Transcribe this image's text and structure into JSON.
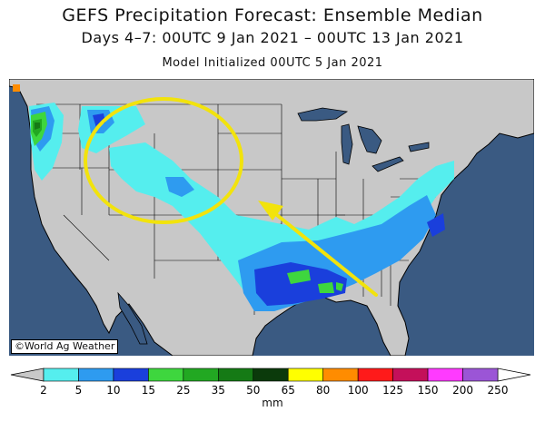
{
  "header": {
    "title": "GEFS Precipitation Forecast: Ensemble Median",
    "subtitle": "Days 4–7: 00UTC 9 Jan 2021 – 00UTC 13 Jan 2021",
    "init": "Model Initialized 00UTC 5 Jan 2021"
  },
  "credit": "©World Ag Weather",
  "colors": {
    "ocean": "#3a5a82",
    "land": "#c8c8c8",
    "highlight": "#f2e30c"
  },
  "colorbar": {
    "units": "mm",
    "ticks": [
      "2",
      "5",
      "10",
      "15",
      "25",
      "35",
      "50",
      "65",
      "80",
      "100",
      "125",
      "150",
      "200",
      "250"
    ],
    "colors": [
      "#55eeee",
      "#2e9bf0",
      "#1a3fdc",
      "#3ed63e",
      "#22a822",
      "#157a15",
      "#0b3a0b",
      "#ffff00",
      "#ff8c00",
      "#ff1a1a",
      "#c4105a",
      "#ff3aff",
      "#9b55d6"
    ],
    "below_color": "#c8c8c8",
    "above_color": "#ffffff"
  },
  "annotations": {
    "circle": "yellow circle around northern Rockies / Great Plains",
    "arrow": "yellow arrow pointing from Florida panhandle toward central Plains"
  }
}
